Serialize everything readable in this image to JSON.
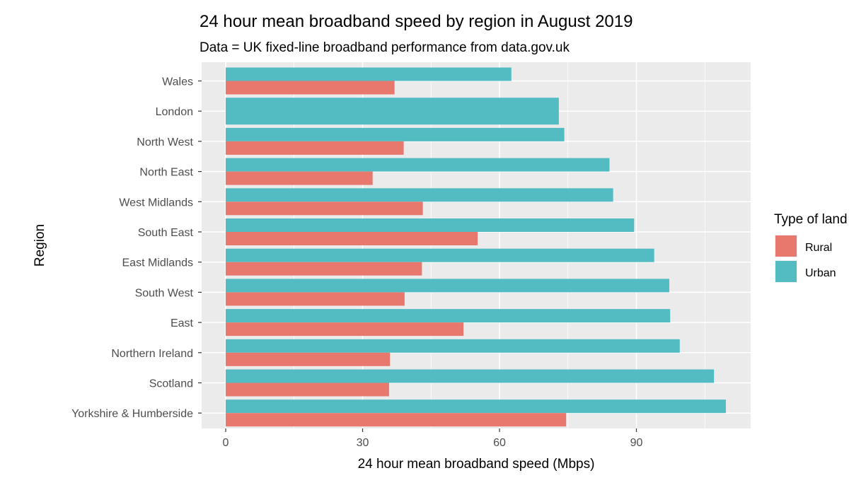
{
  "chart_data": {
    "type": "bar",
    "orientation": "horizontal",
    "title": "24 hour mean broadband speed by region in August 2019",
    "subtitle": "Data = UK fixed-line broadband performance from data.gov.uk",
    "xlabel": "24 hour mean broadband speed (Mbps)",
    "ylabel": "Region",
    "xlim": [
      -5,
      115
    ],
    "xticks": [
      0,
      30,
      60,
      90
    ],
    "grid": true,
    "legend": {
      "title": "Type of land",
      "position": "right"
    },
    "categories": [
      "Wales",
      "London",
      "North West",
      "North East",
      "West Midlands",
      "South East",
      "East Midlands",
      "South West",
      "East",
      "Northern Ireland",
      "Scotland",
      "Yorkshire & Humberside"
    ],
    "series": [
      {
        "name": "Rural",
        "color": "#E8776E",
        "values": [
          37.0,
          null,
          39.0,
          32.2,
          43.2,
          55.2,
          43.0,
          39.2,
          52.1,
          36.0,
          35.8,
          74.6
        ]
      },
      {
        "name": "Urban",
        "color": "#52BCC2",
        "values": [
          62.6,
          73.0,
          74.2,
          84.1,
          84.9,
          89.5,
          93.9,
          97.2,
          97.4,
          99.5,
          107.0,
          109.6
        ]
      }
    ]
  }
}
